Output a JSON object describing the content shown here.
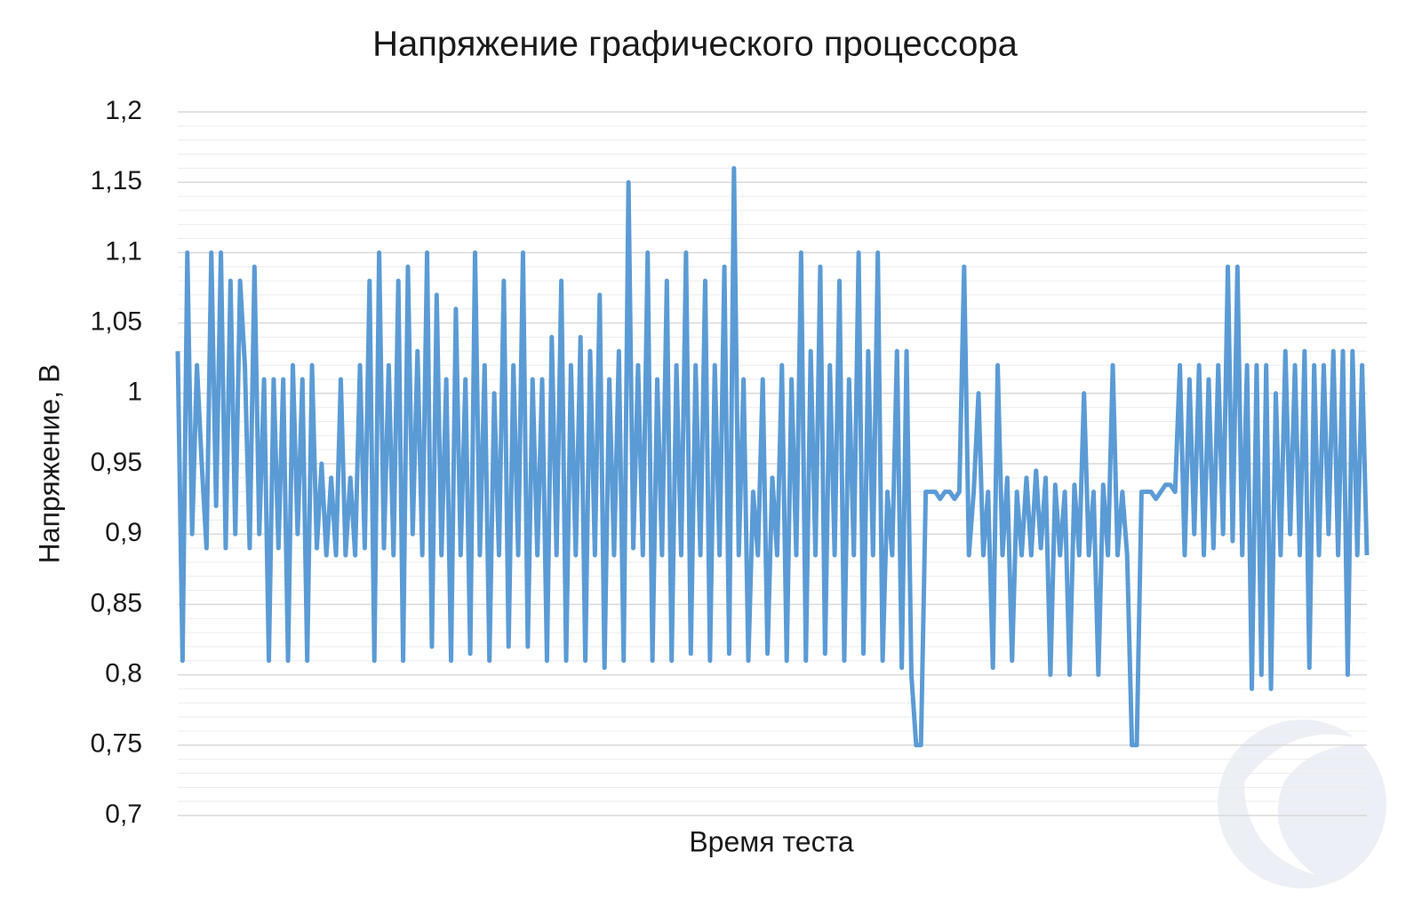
{
  "chart_data": {
    "type": "line",
    "title": "Напряжение графического процессора",
    "x_label": "Время теста",
    "y_label": "Напряжение, В",
    "color": "#5b9bd5",
    "ylim": [
      0.7,
      1.2
    ],
    "yticks": [
      {
        "value": 0.7,
        "label": "0,7"
      },
      {
        "value": 0.75,
        "label": "0,75"
      },
      {
        "value": 0.8,
        "label": "0,8"
      },
      {
        "value": 0.85,
        "label": "0,85"
      },
      {
        "value": 0.9,
        "label": "0,9"
      },
      {
        "value": 0.95,
        "label": "0,95"
      },
      1,
      {
        "value": 1.05,
        "label": "1,05"
      },
      {
        "value": 1.1,
        "label": "1,1"
      },
      {
        "value": 1.15,
        "label": "1,15"
      },
      {
        "value": 1.2,
        "label": "1,2"
      }
    ],
    "grid": true,
    "minor_grid": true,
    "values": [
      1.03,
      0.81,
      1.1,
      0.9,
      1.02,
      0.95,
      0.89,
      1.1,
      0.92,
      1.1,
      0.89,
      1.08,
      0.9,
      1.08,
      1.02,
      0.89,
      1.09,
      0.9,
      1.01,
      0.81,
      1.01,
      0.89,
      1.01,
      0.81,
      1.02,
      0.9,
      1.01,
      0.81,
      1.02,
      0.89,
      0.95,
      0.885,
      0.94,
      0.885,
      1.01,
      0.885,
      0.94,
      0.885,
      1.02,
      0.89,
      1.08,
      0.81,
      1.1,
      0.89,
      1.02,
      0.885,
      1.08,
      0.81,
      1.09,
      0.9,
      1.03,
      0.885,
      1.1,
      0.82,
      1.07,
      0.885,
      1.01,
      0.81,
      1.06,
      0.885,
      1.01,
      0.815,
      1.1,
      0.885,
      1.02,
      0.81,
      1.0,
      0.885,
      1.08,
      0.82,
      1.02,
      0.885,
      1.1,
      0.82,
      1.01,
      0.885,
      1.01,
      0.81,
      1.04,
      0.885,
      1.08,
      0.81,
      1.02,
      0.885,
      1.04,
      0.81,
      1.03,
      0.885,
      1.07,
      0.805,
      1.01,
      0.885,
      1.03,
      0.81,
      1.15,
      0.89,
      1.02,
      0.885,
      1.1,
      0.81,
      1.01,
      0.885,
      1.08,
      0.81,
      1.02,
      0.885,
      1.1,
      0.815,
      1.02,
      0.885,
      1.08,
      0.81,
      1.02,
      0.885,
      1.09,
      0.815,
      1.16,
      0.885,
      1.01,
      0.81,
      0.93,
      0.885,
      1.01,
      0.815,
      0.94,
      0.885,
      1.02,
      0.81,
      1.01,
      0.885,
      1.1,
      0.81,
      1.03,
      0.885,
      1.09,
      0.815,
      1.02,
      0.885,
      1.08,
      0.81,
      1.01,
      0.885,
      1.1,
      0.815,
      1.03,
      0.885,
      1.1,
      0.81,
      0.93,
      0.885,
      1.03,
      0.805,
      1.03,
      0.8,
      0.75,
      0.75,
      0.93,
      0.93,
      0.93,
      0.925,
      0.93,
      0.93,
      0.925,
      0.93,
      1.09,
      0.885,
      0.93,
      1.0,
      0.885,
      0.93,
      0.805,
      1.02,
      0.885,
      0.94,
      0.81,
      0.93,
      0.885,
      0.94,
      0.885,
      0.945,
      0.89,
      0.94,
      0.8,
      0.935,
      0.885,
      0.93,
      0.8,
      0.935,
      0.885,
      1.0,
      0.885,
      0.93,
      0.8,
      0.935,
      0.885,
      1.02,
      0.885,
      0.93,
      0.885,
      0.75,
      0.75,
      0.93,
      0.93,
      0.93,
      0.925,
      0.93,
      0.935,
      0.935,
      0.93,
      1.02,
      0.885,
      1.01,
      0.9,
      1.02,
      0.885,
      1.01,
      0.89,
      1.02,
      0.9,
      1.09,
      0.895,
      1.09,
      0.885,
      1.02,
      0.79,
      1.02,
      0.8,
      1.02,
      0.79,
      1.0,
      0.885,
      1.03,
      0.9,
      1.02,
      0.885,
      1.03,
      0.805,
      1.02,
      0.885,
      1.02,
      0.9,
      1.03,
      0.885,
      1.03,
      0.8,
      1.03,
      0.885,
      1.02,
      0.885
    ]
  }
}
